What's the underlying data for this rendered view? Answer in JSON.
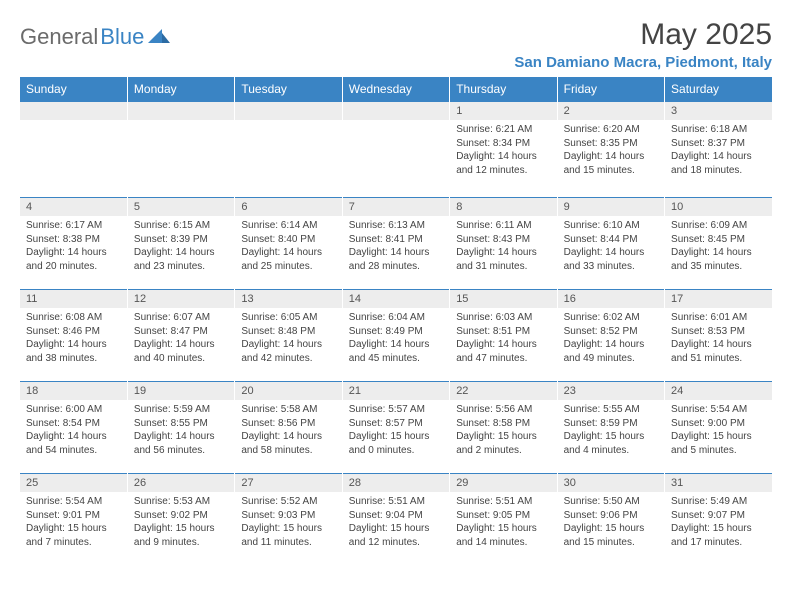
{
  "logo": {
    "text1": "General",
    "text2": "Blue",
    "icon_color": "#3a84c4"
  },
  "title": "May 2025",
  "location": "San Damiano Macra, Piedmont, Italy",
  "colors": {
    "header_bg": "#3a84c4",
    "header_text": "#ffffff",
    "daynum_bg": "#ededed",
    "cell_border_top": "#3a84c4",
    "body_text": "#444444"
  },
  "day_headers": [
    "Sunday",
    "Monday",
    "Tuesday",
    "Wednesday",
    "Thursday",
    "Friday",
    "Saturday"
  ],
  "weeks": [
    [
      null,
      null,
      null,
      null,
      {
        "n": "1",
        "sr": "6:21 AM",
        "ss": "8:34 PM",
        "dl": "14 hours and 12 minutes."
      },
      {
        "n": "2",
        "sr": "6:20 AM",
        "ss": "8:35 PM",
        "dl": "14 hours and 15 minutes."
      },
      {
        "n": "3",
        "sr": "6:18 AM",
        "ss": "8:37 PM",
        "dl": "14 hours and 18 minutes."
      }
    ],
    [
      {
        "n": "4",
        "sr": "6:17 AM",
        "ss": "8:38 PM",
        "dl": "14 hours and 20 minutes."
      },
      {
        "n": "5",
        "sr": "6:15 AM",
        "ss": "8:39 PM",
        "dl": "14 hours and 23 minutes."
      },
      {
        "n": "6",
        "sr": "6:14 AM",
        "ss": "8:40 PM",
        "dl": "14 hours and 25 minutes."
      },
      {
        "n": "7",
        "sr": "6:13 AM",
        "ss": "8:41 PM",
        "dl": "14 hours and 28 minutes."
      },
      {
        "n": "8",
        "sr": "6:11 AM",
        "ss": "8:43 PM",
        "dl": "14 hours and 31 minutes."
      },
      {
        "n": "9",
        "sr": "6:10 AM",
        "ss": "8:44 PM",
        "dl": "14 hours and 33 minutes."
      },
      {
        "n": "10",
        "sr": "6:09 AM",
        "ss": "8:45 PM",
        "dl": "14 hours and 35 minutes."
      }
    ],
    [
      {
        "n": "11",
        "sr": "6:08 AM",
        "ss": "8:46 PM",
        "dl": "14 hours and 38 minutes."
      },
      {
        "n": "12",
        "sr": "6:07 AM",
        "ss": "8:47 PM",
        "dl": "14 hours and 40 minutes."
      },
      {
        "n": "13",
        "sr": "6:05 AM",
        "ss": "8:48 PM",
        "dl": "14 hours and 42 minutes."
      },
      {
        "n": "14",
        "sr": "6:04 AM",
        "ss": "8:49 PM",
        "dl": "14 hours and 45 minutes."
      },
      {
        "n": "15",
        "sr": "6:03 AM",
        "ss": "8:51 PM",
        "dl": "14 hours and 47 minutes."
      },
      {
        "n": "16",
        "sr": "6:02 AM",
        "ss": "8:52 PM",
        "dl": "14 hours and 49 minutes."
      },
      {
        "n": "17",
        "sr": "6:01 AM",
        "ss": "8:53 PM",
        "dl": "14 hours and 51 minutes."
      }
    ],
    [
      {
        "n": "18",
        "sr": "6:00 AM",
        "ss": "8:54 PM",
        "dl": "14 hours and 54 minutes."
      },
      {
        "n": "19",
        "sr": "5:59 AM",
        "ss": "8:55 PM",
        "dl": "14 hours and 56 minutes."
      },
      {
        "n": "20",
        "sr": "5:58 AM",
        "ss": "8:56 PM",
        "dl": "14 hours and 58 minutes."
      },
      {
        "n": "21",
        "sr": "5:57 AM",
        "ss": "8:57 PM",
        "dl": "15 hours and 0 minutes."
      },
      {
        "n": "22",
        "sr": "5:56 AM",
        "ss": "8:58 PM",
        "dl": "15 hours and 2 minutes."
      },
      {
        "n": "23",
        "sr": "5:55 AM",
        "ss": "8:59 PM",
        "dl": "15 hours and 4 minutes."
      },
      {
        "n": "24",
        "sr": "5:54 AM",
        "ss": "9:00 PM",
        "dl": "15 hours and 5 minutes."
      }
    ],
    [
      {
        "n": "25",
        "sr": "5:54 AM",
        "ss": "9:01 PM",
        "dl": "15 hours and 7 minutes."
      },
      {
        "n": "26",
        "sr": "5:53 AM",
        "ss": "9:02 PM",
        "dl": "15 hours and 9 minutes."
      },
      {
        "n": "27",
        "sr": "5:52 AM",
        "ss": "9:03 PM",
        "dl": "15 hours and 11 minutes."
      },
      {
        "n": "28",
        "sr": "5:51 AM",
        "ss": "9:04 PM",
        "dl": "15 hours and 12 minutes."
      },
      {
        "n": "29",
        "sr": "5:51 AM",
        "ss": "9:05 PM",
        "dl": "15 hours and 14 minutes."
      },
      {
        "n": "30",
        "sr": "5:50 AM",
        "ss": "9:06 PM",
        "dl": "15 hours and 15 minutes."
      },
      {
        "n": "31",
        "sr": "5:49 AM",
        "ss": "9:07 PM",
        "dl": "15 hours and 17 minutes."
      }
    ]
  ],
  "labels": {
    "sunrise": "Sunrise:",
    "sunset": "Sunset:",
    "daylight": "Daylight:"
  }
}
